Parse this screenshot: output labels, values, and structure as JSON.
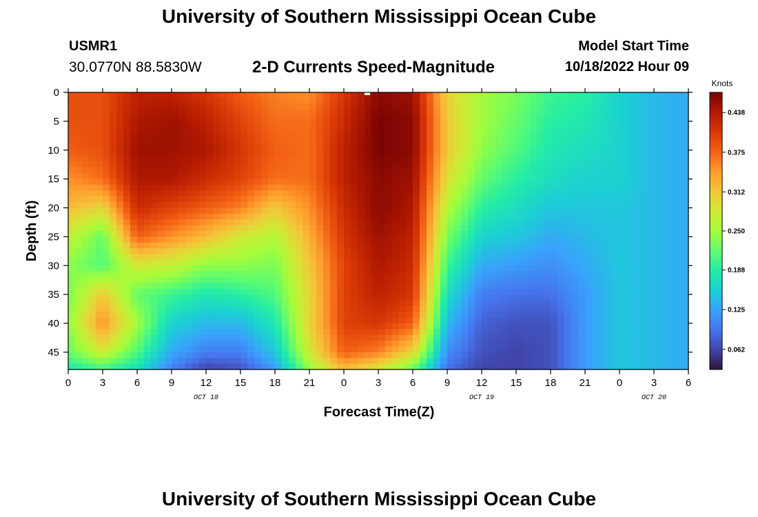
{
  "header": {
    "title": "University of Southern Mississippi Ocean Cube",
    "station": "USMR1",
    "coords": "30.0770N  88.5830W",
    "subtitle": "2-D Currents Speed-Magnitude",
    "start_label": "Model Start Time",
    "start_value": "10/18/2022 Hour 09"
  },
  "footer": {
    "title": "University of Southern Mississippi Ocean Cube"
  },
  "chart_data": {
    "type": "heatmap",
    "title": "2-D Currents Speed-Magnitude",
    "xlabel": "Forecast Time(Z)",
    "ylabel": "Depth (ft)",
    "x_ticks": [
      "0",
      "3",
      "6",
      "9",
      "12",
      "15",
      "18",
      "21",
      "0",
      "3",
      "6",
      "9",
      "12",
      "15",
      "18",
      "21",
      "0",
      "3",
      "6"
    ],
    "x_range_hours": [
      0,
      54
    ],
    "date_labels": [
      {
        "hour": 12,
        "text": "OCT 18"
      },
      {
        "hour": 36,
        "text": "OCT 19"
      },
      {
        "hour": 51,
        "text": "OCT 20"
      }
    ],
    "y_ticks": [
      "0",
      "5",
      "10",
      "15",
      "20",
      "25",
      "30",
      "35",
      "40",
      "45"
    ],
    "y_range": [
      0,
      48
    ],
    "y_inverted": true,
    "colorbar": {
      "label": "Knots",
      "ticks": [
        "0.062",
        "0.125",
        "0.188",
        "0.250",
        "0.312",
        "0.375",
        "0.438"
      ],
      "range": [
        0.03,
        0.47
      ],
      "colors": [
        "#30123b",
        "#4145ab",
        "#4675ed",
        "#39a2fc",
        "#1bcfd4",
        "#24eca6",
        "#61fc6c",
        "#a4fc3b",
        "#d1e834",
        "#f3c63a",
        "#fe9b2d",
        "#f36315",
        "#d93806",
        "#b11901",
        "#7a0403"
      ]
    },
    "speed_grid": {
      "depths_ft": [
        0,
        5,
        10,
        15,
        20,
        25,
        30,
        35,
        40,
        45,
        48
      ],
      "hours": [
        0,
        3,
        6,
        9,
        12,
        15,
        18,
        21,
        24,
        27,
        30,
        33,
        36,
        39,
        42,
        45,
        48,
        51,
        54
      ],
      "values": [
        [
          0.39,
          0.39,
          0.43,
          0.43,
          0.41,
          0.38,
          0.36,
          0.35,
          0.41,
          0.46,
          0.45,
          0.3,
          0.25,
          0.23,
          0.2,
          0.19,
          0.16,
          0.14,
          0.13
        ],
        [
          0.39,
          0.39,
          0.44,
          0.45,
          0.43,
          0.4,
          0.37,
          0.37,
          0.42,
          0.47,
          0.46,
          0.31,
          0.25,
          0.22,
          0.19,
          0.18,
          0.16,
          0.14,
          0.13
        ],
        [
          0.38,
          0.39,
          0.45,
          0.45,
          0.44,
          0.41,
          0.38,
          0.37,
          0.43,
          0.47,
          0.46,
          0.31,
          0.24,
          0.21,
          0.18,
          0.17,
          0.16,
          0.14,
          0.13
        ],
        [
          0.35,
          0.37,
          0.44,
          0.44,
          0.42,
          0.4,
          0.37,
          0.37,
          0.43,
          0.46,
          0.45,
          0.29,
          0.22,
          0.19,
          0.17,
          0.16,
          0.16,
          0.14,
          0.13
        ],
        [
          0.32,
          0.3,
          0.42,
          0.4,
          0.38,
          0.36,
          0.31,
          0.35,
          0.42,
          0.46,
          0.44,
          0.26,
          0.19,
          0.17,
          0.15,
          0.15,
          0.15,
          0.14,
          0.13
        ],
        [
          0.27,
          0.22,
          0.38,
          0.35,
          0.32,
          0.28,
          0.26,
          0.33,
          0.41,
          0.45,
          0.43,
          0.23,
          0.16,
          0.15,
          0.13,
          0.14,
          0.15,
          0.14,
          0.13
        ],
        [
          0.24,
          0.21,
          0.28,
          0.27,
          0.24,
          0.24,
          0.23,
          0.31,
          0.4,
          0.44,
          0.42,
          0.2,
          0.13,
          0.12,
          0.11,
          0.13,
          0.15,
          0.14,
          0.13
        ],
        [
          0.23,
          0.31,
          0.22,
          0.2,
          0.18,
          0.19,
          0.21,
          0.3,
          0.4,
          0.43,
          0.41,
          0.17,
          0.1,
          0.09,
          0.09,
          0.12,
          0.15,
          0.14,
          0.13
        ],
        [
          0.24,
          0.35,
          0.25,
          0.16,
          0.14,
          0.14,
          0.18,
          0.3,
          0.4,
          0.41,
          0.38,
          0.14,
          0.08,
          0.07,
          0.07,
          0.12,
          0.15,
          0.14,
          0.13
        ],
        [
          0.22,
          0.28,
          0.21,
          0.13,
          0.1,
          0.1,
          0.15,
          0.28,
          0.38,
          0.36,
          0.3,
          0.11,
          0.07,
          0.06,
          0.07,
          0.12,
          0.15,
          0.14,
          0.13
        ],
        [
          0.18,
          0.2,
          0.17,
          0.1,
          0.06,
          0.07,
          0.12,
          0.24,
          0.32,
          0.28,
          0.22,
          0.09,
          0.06,
          0.06,
          0.07,
          0.12,
          0.15,
          0.14,
          0.13
        ]
      ]
    }
  }
}
